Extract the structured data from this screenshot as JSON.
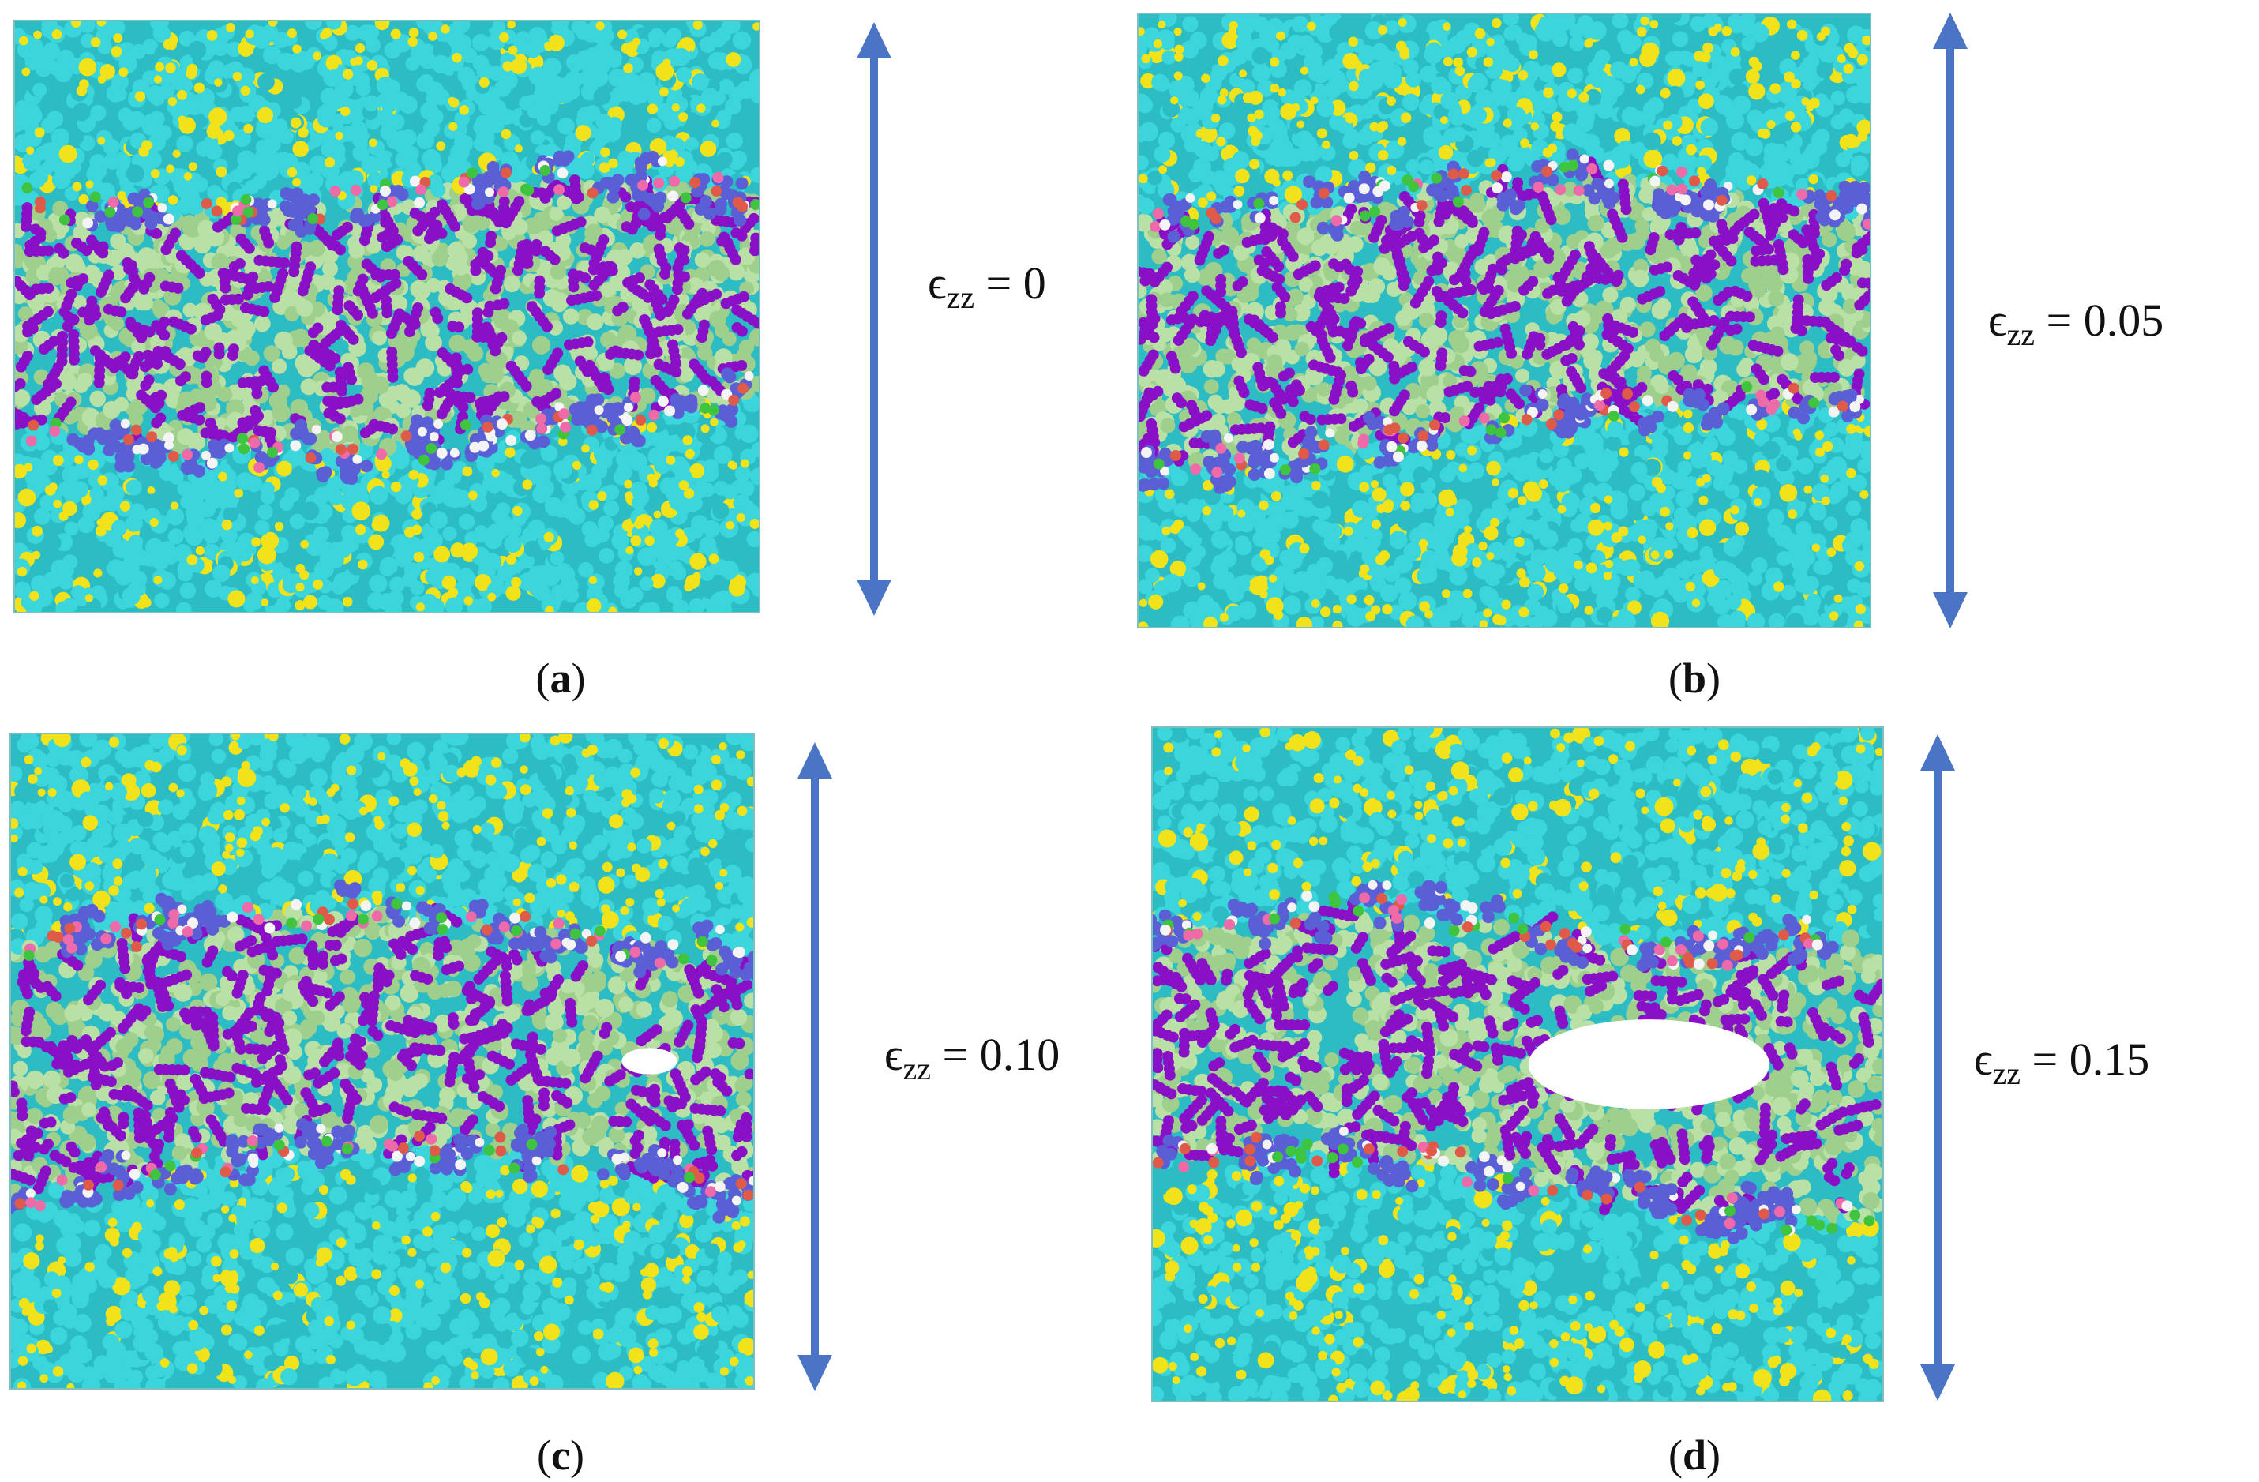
{
  "figure": {
    "panels": [
      {
        "id": "a",
        "caption_open": "(",
        "caption_letter": "a",
        "caption_close": ")",
        "strain_symbol": "ϵ",
        "strain_subscript": "zz",
        "strain_eq": " = ",
        "strain_value": "0",
        "void_size": 0
      },
      {
        "id": "b",
        "caption_open": "(",
        "caption_letter": "b",
        "caption_close": ")",
        "strain_symbol": "ϵ",
        "strain_subscript": "zz",
        "strain_eq": " = ",
        "strain_value": "0.05",
        "void_size": 0
      },
      {
        "id": "c",
        "caption_open": "(",
        "caption_letter": "c",
        "caption_close": ")",
        "strain_symbol": "ϵ",
        "strain_subscript": "zz",
        "strain_eq": " = ",
        "strain_value": "0.10",
        "void_size": 0.15
      },
      {
        "id": "d",
        "caption_open": "(",
        "caption_letter": "d",
        "caption_close": ")",
        "strain_symbol": "ϵ",
        "strain_subscript": "zz",
        "strain_eq": " = ",
        "strain_value": "0.15",
        "void_size": 1.0
      }
    ],
    "colors": {
      "matrix": "#3ad6dc",
      "matrix_dark": "#2bbcc4",
      "yellow_atoms": "#f2e21a",
      "interphase": "#b9e0a5",
      "interphase_dark": "#9fcf8c",
      "purple": "#8a10c8",
      "blue_cluster": "#5b5fd6",
      "pink": "#ef6aa8",
      "red": "#e05a4a",
      "green": "#3ec43e",
      "white": "#f4f4f4",
      "arrow": "#4a74c4"
    }
  }
}
